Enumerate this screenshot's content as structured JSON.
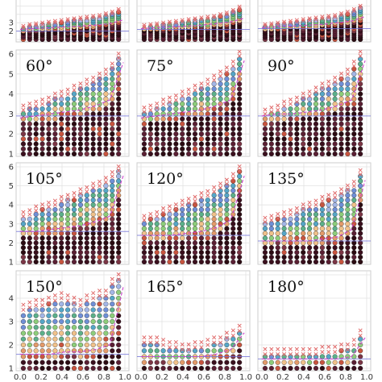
{
  "chart_data": {
    "type": "scatter",
    "layout": "4 rows x 3 columns of small multiples",
    "x_ticks": [
      "0.0",
      "0.2",
      "0.4",
      "0.6",
      "0.8",
      "1.0"
    ],
    "xlim": [
      0.0,
      1.0
    ],
    "colors": {
      "dot_palette": [
        "#3a0f1d",
        "#5a1f33",
        "#2b0b12",
        "#7b3545",
        "#c8543f",
        "#e39a6a",
        "#f0c18a",
        "#8dcd7a",
        "#5cb08a",
        "#55a6c7",
        "#6f8fd6",
        "#a3b6e6"
      ],
      "marker_x": "#e06a6a",
      "fit_line": "#cc44cc",
      "threshold_line": "#7070d8"
    },
    "panels": [
      {
        "label": "",
        "ylim": [
          1,
          6
        ],
        "y_ticks": [
          "2",
          "3"
        ],
        "show_y_ticks": true,
        "show_x_ticks": false,
        "upper": [
          2.4,
          2.6,
          2.7,
          2.8,
          2.9,
          3.0,
          3.1,
          3.2,
          3.3,
          3.4,
          3.5,
          3.6,
          3.7,
          3.9,
          4.1,
          4.4
        ],
        "fit": [
          2.2,
          2.3,
          2.4,
          2.5,
          2.6,
          2.7,
          2.9,
          3.4
        ],
        "t": 2.0
      },
      {
        "label": "",
        "ylim": [
          1,
          6
        ],
        "y_ticks": [],
        "show_y_ticks": false,
        "show_x_ticks": false,
        "upper": [
          2.5,
          2.6,
          2.7,
          2.8,
          2.9,
          3.0,
          3.1,
          3.2,
          3.3,
          3.4,
          3.5,
          3.6,
          3.8,
          4.0,
          4.3,
          4.7
        ],
        "fit": [
          2.3,
          2.4,
          2.5,
          2.6,
          2.7,
          2.9,
          3.1,
          3.6
        ],
        "t": 2.2
      },
      {
        "label": "",
        "ylim": [
          1,
          6
        ],
        "y_ticks": [],
        "show_y_ticks": false,
        "show_x_ticks": false,
        "upper": [
          2.6,
          2.7,
          2.8,
          2.9,
          3.0,
          3.1,
          3.2,
          3.3,
          3.4,
          3.5,
          3.6,
          3.7,
          3.9,
          4.1,
          4.4,
          4.8
        ],
        "fit": [
          2.4,
          2.5,
          2.6,
          2.7,
          2.8,
          3.0,
          3.2,
          3.8
        ],
        "t": 2.3
      },
      {
        "label": "60°",
        "ylim": [
          1,
          6
        ],
        "y_ticks": [
          "1",
          "2",
          "3",
          "4",
          "5",
          "6"
        ],
        "show_y_ticks": true,
        "show_x_ticks": false,
        "upper": [
          3.2,
          3.3,
          3.4,
          3.5,
          3.6,
          3.8,
          3.9,
          4.0,
          4.2,
          4.3,
          4.5,
          4.6,
          4.8,
          5.0,
          5.3,
          5.8
        ],
        "fit": [
          2.8,
          2.9,
          3.0,
          3.1,
          3.2,
          3.4,
          3.7,
          5.8
        ],
        "t": 2.9
      },
      {
        "label": "75°",
        "ylim": [
          1,
          6
        ],
        "y_ticks": [],
        "show_y_ticks": false,
        "show_x_ticks": false,
        "upper": [
          3.1,
          3.2,
          3.3,
          3.5,
          3.6,
          3.7,
          3.9,
          4.0,
          4.2,
          4.3,
          4.5,
          4.7,
          4.9,
          5.1,
          5.4,
          5.9
        ],
        "fit": [
          2.8,
          2.9,
          3.0,
          3.1,
          3.2,
          3.4,
          3.7,
          5.9
        ],
        "t": 2.9
      },
      {
        "label": "90°",
        "ylim": [
          1,
          6
        ],
        "y_ticks": [],
        "show_y_ticks": false,
        "show_x_ticks": false,
        "upper": [
          3.0,
          3.1,
          3.2,
          3.4,
          3.5,
          3.6,
          3.8,
          3.9,
          4.1,
          4.3,
          4.4,
          4.6,
          4.8,
          5.0,
          5.4,
          5.9
        ],
        "fit": [
          2.9,
          3.0,
          3.0,
          3.1,
          3.2,
          3.4,
          3.7,
          5.9
        ],
        "t": 2.9
      },
      {
        "label": "105°",
        "ylim": [
          1,
          6
        ],
        "y_ticks": [
          "1",
          "2",
          "3",
          "4",
          "5",
          "6"
        ],
        "show_y_ticks": true,
        "show_x_ticks": false,
        "upper": [
          3.4,
          3.5,
          3.7,
          3.8,
          3.9,
          4.0,
          4.2,
          4.3,
          4.4,
          4.6,
          4.7,
          4.9,
          5.0,
          5.2,
          5.5,
          5.8
        ],
        "fit": [
          2.6,
          2.6,
          2.7,
          2.8,
          2.9,
          3.1,
          3.4,
          5.8
        ],
        "t": 2.6
      },
      {
        "label": "120°",
        "ylim": [
          1,
          6
        ],
        "y_ticks": [],
        "show_y_ticks": false,
        "show_x_ticks": false,
        "upper": [
          3.2,
          3.3,
          3.4,
          3.6,
          3.7,
          3.8,
          4.0,
          4.1,
          4.2,
          4.4,
          4.5,
          4.7,
          4.9,
          5.1,
          5.4,
          5.8
        ],
        "fit": [
          2.4,
          2.4,
          2.4,
          2.5,
          2.6,
          2.8,
          3.2,
          5.8
        ],
        "t": 2.4
      },
      {
        "label": "135°",
        "ylim": [
          1,
          6
        ],
        "y_ticks": [],
        "show_y_ticks": false,
        "show_x_ticks": false,
        "upper": [
          3.1,
          3.2,
          3.3,
          3.4,
          3.5,
          3.6,
          3.8,
          3.9,
          4.0,
          4.2,
          4.3,
          4.4,
          4.6,
          4.8,
          5.0,
          5.6
        ],
        "fit": [
          2.1,
          2.1,
          2.1,
          2.1,
          2.2,
          2.3,
          2.7,
          5.6
        ],
        "t": 2.1
      },
      {
        "label": "150°",
        "ylim": [
          1,
          5
        ],
        "y_ticks": [
          "1",
          "2",
          "3",
          "4"
        ],
        "show_y_ticks": true,
        "show_x_ticks": true,
        "upper": [
          3.5,
          3.6,
          3.7,
          3.7,
          3.8,
          3.9,
          4.0,
          3.9,
          3.8,
          3.7,
          3.9,
          4.0,
          4.1,
          4.1,
          4.6,
          4.8
        ],
        "fit": [
          1.6,
          1.6,
          1.6,
          1.7,
          1.7,
          1.8,
          2.0,
          4.8
        ],
        "t": 1.6
      },
      {
        "label": "165°",
        "ylim": [
          1,
          5
        ],
        "y_ticks": [],
        "show_y_ticks": false,
        "show_x_ticks": true,
        "upper": [
          2.1,
          2.1,
          2.1,
          2.0,
          1.9,
          1.9,
          1.8,
          1.8,
          1.9,
          1.9,
          2.0,
          2.1,
          2.1,
          2.3,
          2.4,
          2.6
        ],
        "fit": [
          1.5,
          1.5,
          1.5,
          1.5,
          1.5,
          1.6,
          1.8,
          2.6
        ],
        "t": 1.5
      },
      {
        "label": "180°",
        "ylim": [
          1,
          5
        ],
        "y_ticks": [],
        "show_y_ticks": false,
        "show_x_ticks": true,
        "upper": [
          1.6,
          1.6,
          1.6,
          1.6,
          1.6,
          1.6,
          1.6,
          1.6,
          1.6,
          1.7,
          1.7,
          1.7,
          1.8,
          1.8,
          2.0,
          2.4
        ],
        "fit": [
          1.4,
          1.4,
          1.4,
          1.4,
          1.4,
          1.4,
          1.5,
          2.4
        ],
        "t": 1.4
      }
    ]
  }
}
